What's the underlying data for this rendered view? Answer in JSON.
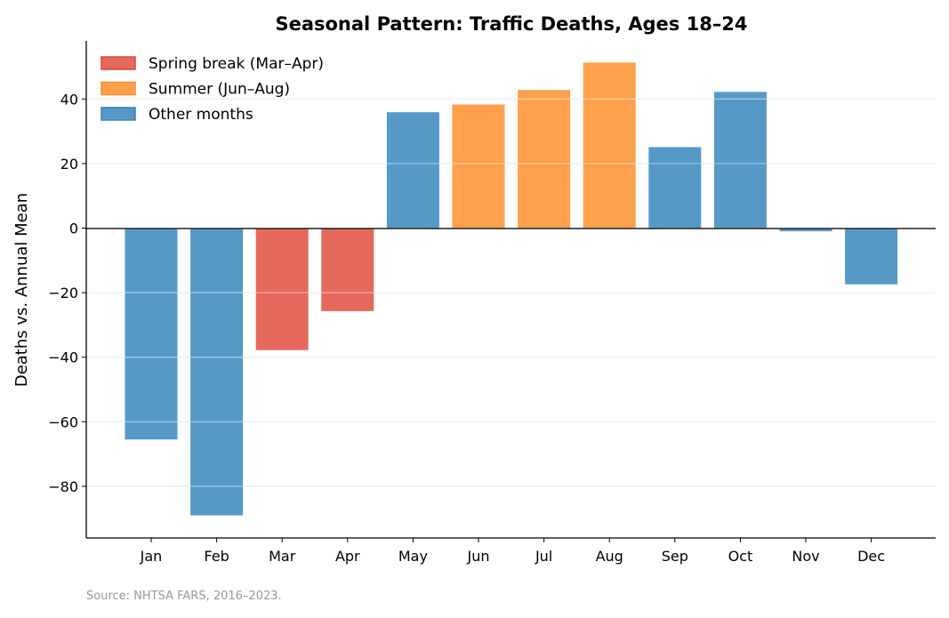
{
  "chart_data": {
    "type": "bar",
    "title": "Seasonal Pattern: Traffic Deaths, Ages 18–24",
    "xlabel": "",
    "ylabel": "Deaths vs. Annual Mean",
    "source": "Source: NHTSA FARS, 2016–2023.",
    "categories": [
      "Jan",
      "Feb",
      "Mar",
      "Apr",
      "May",
      "Jun",
      "Jul",
      "Aug",
      "Sep",
      "Oct",
      "Nov",
      "Dec"
    ],
    "values": [
      -65.5,
      -89.0,
      -37.8,
      -25.7,
      35.9,
      38.3,
      42.8,
      51.3,
      25.1,
      42.2,
      -1.0,
      -17.4
    ],
    "groups": [
      "other",
      "other",
      "spring",
      "spring",
      "other",
      "summer",
      "summer",
      "summer",
      "other",
      "other",
      "other",
      "other"
    ],
    "ylim": [
      -96,
      58
    ],
    "yticks": [
      -80,
      -60,
      -40,
      -20,
      0,
      20,
      40
    ],
    "ytick_labels": [
      "−80",
      "−60",
      "−40",
      "−20",
      "0",
      "20",
      "40"
    ],
    "grid": "horizontal",
    "legend_placement": "top-left",
    "legend": [
      {
        "key": "spring",
        "label": "Spring break (Mar–Apr)",
        "color": "#e4695a",
        "edge": "#d9473a"
      },
      {
        "key": "summer",
        "label": "Summer (Jun–Aug)",
        "color": "#ffa04d",
        "edge": "#ff8c2e"
      },
      {
        "key": "other",
        "label": "Other months",
        "color": "#5699c7",
        "edge": "#3a80b8"
      }
    ]
  }
}
